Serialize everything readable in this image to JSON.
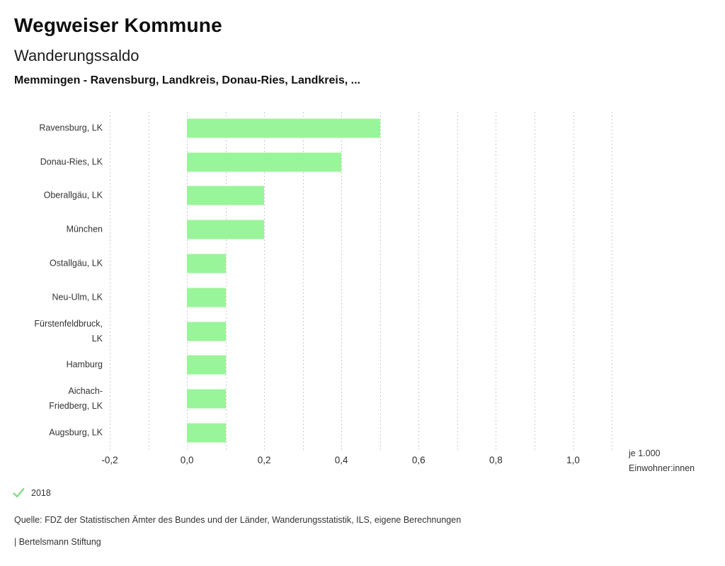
{
  "header": {
    "title": "Wegweiser Kommune",
    "subtitle": "Wanderungssaldo",
    "selection": "Memmingen - Ravensburg, Landkreis, Donau-Ries, Landkreis, ..."
  },
  "chart_data": {
    "type": "bar",
    "orientation": "horizontal",
    "title": "Wanderungssaldo",
    "categories": [
      "Ravensburg, LK",
      "Donau-Ries, LK",
      "Oberallgäu, LK",
      "München",
      "Ostallgäu, LK",
      "Neu-Ulm, LK",
      "Fürstenfeldbruck, LK",
      "Hamburg",
      "Aichach-Friedberg, LK",
      "Augsburg, LK"
    ],
    "category_label_lines": [
      [
        "Ravensburg, LK"
      ],
      [
        "Donau-Ries, LK"
      ],
      [
        "Oberallgäu, LK"
      ],
      [
        "München"
      ],
      [
        "Ostallgäu, LK"
      ],
      [
        "Neu-Ulm, LK"
      ],
      [
        "Fürstenfeldbruck,",
        "LK"
      ],
      [
        "Hamburg"
      ],
      [
        "Aichach-",
        "Friedberg, LK"
      ],
      [
        "Augsburg, LK"
      ]
    ],
    "values": [
      0.5,
      0.4,
      0.2,
      0.2,
      0.1,
      0.1,
      0.1,
      0.1,
      0.1,
      0.1
    ],
    "series_name": "2018",
    "xlim": [
      -0.2,
      1.1
    ],
    "grid_interval": 0.1,
    "grid": true,
    "x_ticks": [
      -0.2,
      0.0,
      0.2,
      0.4,
      0.6,
      0.8,
      1.0
    ],
    "x_tick_labels": [
      "-0,2",
      "0,0",
      "0,2",
      "0,4",
      "0,6",
      "0,8",
      "1,0"
    ],
    "xlabel": "je 1.000 Einwohner:innen",
    "xlabel_lines": [
      "je 1.000",
      "Einwohner:innen"
    ],
    "bar_color": "#99f599",
    "legend_position": "bottom-left"
  },
  "legend": {
    "year": "2018",
    "check_icon": "checkmark-icon",
    "check_color": "#85dd85"
  },
  "footer": {
    "source": "Quelle: FDZ der Statistischen Ämter des Bundes und der Länder, Wanderungsstatistik, ILS, eigene Berechnungen",
    "branding": "| Bertelsmann Stiftung"
  }
}
